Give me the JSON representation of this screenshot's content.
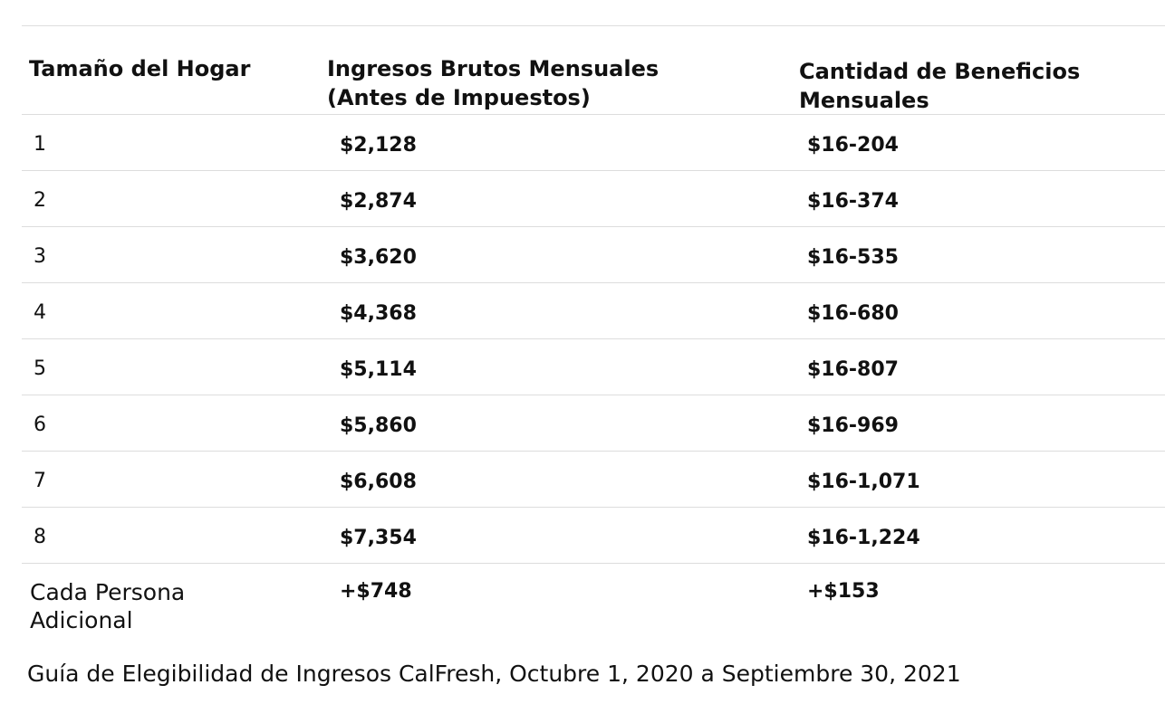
{
  "table": {
    "headers": [
      "Tamaño del Hogar",
      "Ingresos Brutos Mensuales\n(Antes de Impuestos)",
      "Cantidad de Beneficios\nMensuales"
    ],
    "rows": [
      {
        "size": "1",
        "income": "$2,128",
        "benefit": "$16-204"
      },
      {
        "size": "2",
        "income": "$2,874",
        "benefit": "$16-374"
      },
      {
        "size": "3",
        "income": "$3,620",
        "benefit": "$16-535"
      },
      {
        "size": "4",
        "income": "$4,368",
        "benefit": "$16-680"
      },
      {
        "size": "5",
        "income": "$5,114",
        "benefit": "$16-807"
      },
      {
        "size": "6",
        "income": "$5,860",
        "benefit": "$16-969"
      },
      {
        "size": "7",
        "income": "$6,608",
        "benefit": "$16-1,071"
      },
      {
        "size": "8",
        "income": "$7,354",
        "benefit": "$16-1,224"
      },
      {
        "size": "Cada Persona\nAdicional",
        "income": "+$748",
        "benefit": "+$153"
      }
    ]
  },
  "caption": "Guía de Elegibilidad de Ingresos CalFresh, Octubre 1, 2020 a Septiembre 30, 2021"
}
